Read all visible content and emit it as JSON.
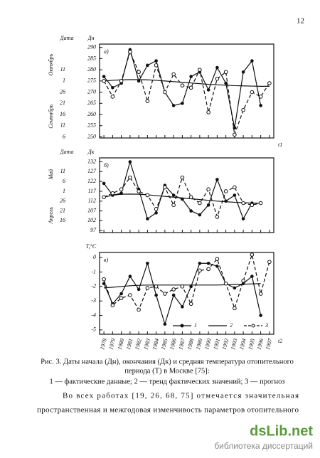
{
  "page_number": "12",
  "chart_data": [
    {
      "type": "line",
      "panel_label": "а)",
      "y_label": "Дн",
      "date_title": "Дата",
      "month_labels": [
        "Октябрь",
        "Сентябрь"
      ],
      "date_ticks": [
        {
          "value": 280,
          "label": "11"
        },
        {
          "value": 275,
          "label": "1"
        },
        {
          "value": 270,
          "label": "26"
        },
        {
          "value": 265,
          "label": "21"
        },
        {
          "value": 260,
          "label": "16"
        },
        {
          "value": 255,
          "label": "11"
        },
        {
          "value": 250,
          "label": "6"
        }
      ],
      "corner_label": "t1",
      "show_x_labels": false,
      "x": [
        1978,
        1979,
        1980,
        1981,
        1982,
        1983,
        1984,
        1985,
        1986,
        1987,
        1988,
        1989,
        1990,
        1991,
        1992,
        1993,
        1994,
        1995,
        1996,
        1997
      ],
      "xlim": [
        1977.5,
        1997.5
      ],
      "ylim": [
        249.5,
        291.5
      ],
      "yticks": [
        290,
        285,
        280,
        275,
        270,
        265,
        260,
        255,
        250
      ],
      "series": [
        {
          "style": "solid-dot",
          "color": "#111",
          "values": [
            277,
            272,
            274,
            289,
            275,
            282,
            284,
            270,
            264,
            265,
            277,
            279,
            271,
            281,
            274,
            254,
            279,
            284,
            264,
            null
          ]
        },
        {
          "style": "solid",
          "color": "#111",
          "values": [
            275,
            275.3,
            275.5,
            275.6,
            275.6,
            275.5,
            275.3,
            275,
            274.7,
            274.4,
            274.1,
            273.8,
            273.5,
            273.3,
            273.1,
            272.9,
            272.8,
            272.7,
            272.6,
            272.6
          ]
        },
        {
          "style": "dashed-circle",
          "color": "#111",
          "values": [
            275,
            268,
            275,
            288,
            279,
            266,
            282,
            270,
            278,
            273,
            272,
            280,
            261,
            276,
            279,
            251,
            262,
            270,
            268,
            274
          ]
        }
      ]
    },
    {
      "type": "line",
      "panel_label": "б)",
      "y_label": "Дк",
      "date_title": "Дата",
      "month_labels": [
        "Май",
        "Апрель"
      ],
      "date_ticks": [
        {
          "value": 127,
          "label": "11"
        },
        {
          "value": 122,
          "label": "6"
        },
        {
          "value": 117,
          "label": "1"
        },
        {
          "value": 112,
          "label": "26"
        },
        {
          "value": 107,
          "label": "21"
        },
        {
          "value": 102,
          "label": "16"
        }
      ],
      "show_x_labels": false,
      "x": [
        1978,
        1979,
        1980,
        1981,
        1982,
        1983,
        1984,
        1985,
        1986,
        1987,
        1988,
        1989,
        1990,
        1991,
        1992,
        1993,
        1994,
        1995,
        1996,
        1997
      ],
      "xlim": [
        1977.5,
        1997.5
      ],
      "ylim": [
        96,
        134
      ],
      "yticks": [
        132,
        127,
        122,
        117,
        112,
        107,
        102,
        97
      ],
      "series": [
        {
          "style": "solid-dot",
          "color": "#111",
          "values": [
            121,
            115,
            116,
            132,
            118,
            103,
            106,
            120,
            115,
            113,
            107,
            105,
            110,
            123,
            112,
            115,
            103,
            111,
            111,
            null
          ]
        },
        {
          "style": "solid",
          "color": "#111",
          "values": [
            114,
            115,
            115.5,
            115.6,
            115.5,
            115.2,
            114.8,
            114.4,
            114,
            113.6,
            113.2,
            112.8,
            112.4,
            112,
            111.7,
            111.4,
            111.2,
            111,
            110.9,
            null
          ]
        },
        {
          "style": "dashed-circle",
          "color": "#111",
          "values": [
            114,
            116,
            118,
            124,
            117,
            115,
            108,
            119,
            110,
            124,
            114,
            111,
            118,
            104,
            117,
            119,
            111,
            110,
            111,
            null
          ]
        }
      ]
    },
    {
      "type": "line",
      "panel_label": "в)",
      "y_label": "T,°C",
      "corner_label": "t2",
      "show_x_labels": true,
      "x": [
        1978,
        1979,
        1980,
        1981,
        1982,
        1983,
        1984,
        1985,
        1986,
        1987,
        1988,
        1989,
        1990,
        1991,
        1992,
        1993,
        1994,
        1995,
        1996,
        1997
      ],
      "xlim": [
        1977.5,
        1997.5
      ],
      "ylim": [
        -5.3,
        0.35
      ],
      "yticks": [
        0,
        -1,
        -2,
        -3,
        -4,
        -5
      ],
      "legend": "bottom-right",
      "series": [
        {
          "name": "1",
          "style": "solid-dot",
          "color": "#111",
          "values": [
            -1.8,
            -3.2,
            -2.5,
            -1.3,
            -2.2,
            -0.4,
            -2.6,
            -4.6,
            -2.6,
            -3.4,
            -2.0,
            -0.4,
            -0.4,
            -0.6,
            -1.8,
            -2.1,
            -1.8,
            -1.3,
            -4.0,
            null
          ]
        },
        {
          "name": "2",
          "style": "solid",
          "color": "#111",
          "values": [
            -2.1,
            -2.05,
            -2.0,
            -1.95,
            -1.92,
            -1.9,
            -1.9,
            -1.9,
            -1.9,
            -1.9,
            -1.9,
            -1.9,
            -1.9,
            -1.9,
            -1.88,
            -1.86,
            -1.84,
            -1.82,
            -1.8,
            null
          ]
        },
        {
          "name": "3",
          "style": "dashed-circle",
          "color": "#111",
          "values": [
            -1.5,
            -3.3,
            -2.8,
            -2.6,
            -3.6,
            -2.1,
            -2.0,
            -2.5,
            -2.2,
            -2.0,
            -3.2,
            -0.9,
            -0.8,
            -0.1,
            -1.8,
            -3.5,
            -1.6,
            0.2,
            -2.5,
            -0.3
          ]
        }
      ]
    }
  ],
  "caption": [
    "Рис. 3. Даты начала (Дн), окончания (Дк) и средняя температура отопительного",
    "периода (Т) в Москве [75]:",
    "1 — фактические данные; 2 — тренд фактических значений; 3 — прогноз"
  ],
  "body": [
    "Во всех работах [19, 26, 68, 75] отмечается значительная",
    "пространственная и межгодовая изменчивость параметров отопительного"
  ],
  "watermark": {
    "logo": "dsLib.net",
    "tagline": "библиотека диссертаций"
  }
}
